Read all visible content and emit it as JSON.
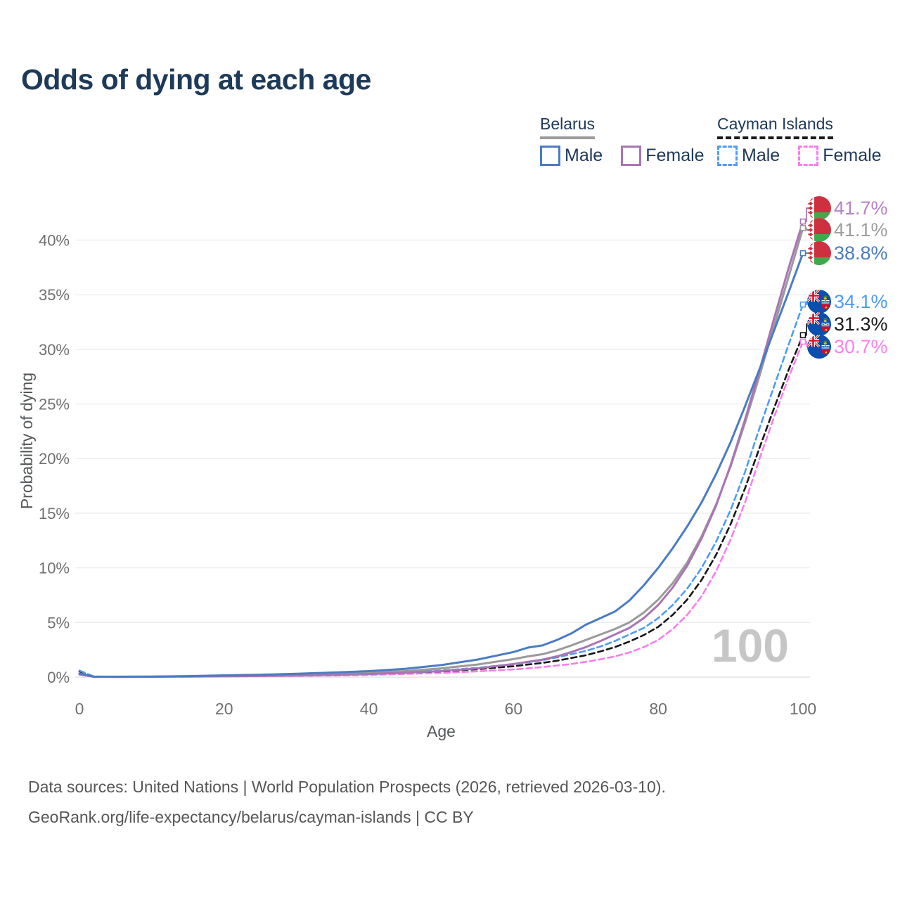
{
  "title": "Odds of dying at each age",
  "legend": {
    "groups": [
      {
        "label": "Belarus",
        "underline_style": "solid",
        "underline_color": "#9a9a9a",
        "items": [
          {
            "label": "Male",
            "color": "#4a7cc2",
            "dashed": false
          },
          {
            "label": "Female",
            "color": "#aa74b4",
            "dashed": false
          }
        ]
      },
      {
        "label": "Cayman Islands",
        "underline_style": "dashed",
        "underline_color": "#1a1a1a",
        "items": [
          {
            "label": "Male",
            "color": "#4e9bf7",
            "dashed": true
          },
          {
            "label": "Female",
            "color": "#f97cf0",
            "dashed": true
          }
        ]
      }
    ]
  },
  "chart_data": {
    "type": "line",
    "title": "Odds of dying at each age",
    "xlabel": "Age",
    "ylabel": "Probability of dying",
    "xlim": [
      0,
      100
    ],
    "ylim": [
      0,
      43
    ],
    "x_ticks": [
      0,
      20,
      40,
      60,
      80,
      100
    ],
    "y_ticks_percent": [
      0,
      5,
      10,
      15,
      20,
      25,
      30,
      35,
      40
    ],
    "grid": "horizontal",
    "legend_position": "top-right",
    "hover_age_label": "100",
    "ages": [
      0,
      2,
      5,
      10,
      15,
      20,
      25,
      30,
      35,
      40,
      45,
      50,
      55,
      60,
      62,
      64,
      66,
      68,
      70,
      72,
      74,
      76,
      78,
      80,
      82,
      84,
      86,
      88,
      90,
      92,
      94,
      96,
      98,
      100
    ],
    "series": [
      {
        "name": "Cayman Islands Female",
        "flag": "cayman",
        "color": "#f97cf0",
        "label_color": "#fb80f0",
        "dash": true,
        "end_label": "30.7%",
        "end_value": 30.7,
        "values": [
          0.5,
          0.03,
          0.02,
          0.03,
          0.04,
          0.06,
          0.08,
          0.11,
          0.15,
          0.2,
          0.28,
          0.38,
          0.53,
          0.7,
          0.8,
          0.92,
          1.06,
          1.2,
          1.4,
          1.62,
          1.9,
          2.25,
          2.75,
          3.4,
          4.4,
          5.7,
          7.4,
          9.7,
          12.6,
          16.0,
          20.0,
          23.8,
          27.4,
          30.7
        ]
      },
      {
        "name": "Cayman Islands Both sexes",
        "flag": "cayman",
        "color": "#161616",
        "label_color": "#1b1b1b",
        "dash": true,
        "end_label": "31.3%",
        "end_value": 31.3,
        "values": [
          0.55,
          0.04,
          0.03,
          0.04,
          0.06,
          0.1,
          0.13,
          0.17,
          0.22,
          0.3,
          0.4,
          0.52,
          0.72,
          1.0,
          1.15,
          1.3,
          1.5,
          1.75,
          2.0,
          2.35,
          2.75,
          3.25,
          3.85,
          4.6,
          5.7,
          7.1,
          8.9,
          11.2,
          14.0,
          17.3,
          21.0,
          24.6,
          28.1,
          31.3
        ]
      },
      {
        "name": "Cayman Islands Male",
        "flag": "cayman",
        "color": "#4e9bf7",
        "label_color": "#4e9bf7",
        "dash": true,
        "end_label": "34.1%",
        "end_value": 34.1,
        "values": [
          0.6,
          0.05,
          0.03,
          0.04,
          0.08,
          0.13,
          0.17,
          0.22,
          0.28,
          0.35,
          0.45,
          0.6,
          0.85,
          1.2,
          1.35,
          1.55,
          1.8,
          2.1,
          2.4,
          2.8,
          3.3,
          3.9,
          4.5,
          5.4,
          6.6,
          8.1,
          10.0,
          12.4,
          15.3,
          18.8,
          22.8,
          26.6,
          30.4,
          34.1
        ]
      },
      {
        "name": "Belarus Both sexes",
        "flag": "belarus",
        "color": "#9a9a9a",
        "label_color": "#9d9d9d",
        "dash": false,
        "end_label": "41.1%",
        "end_value": 41.1,
        "values": [
          0.28,
          0.04,
          0.03,
          0.04,
          0.07,
          0.12,
          0.16,
          0.22,
          0.3,
          0.4,
          0.55,
          0.8,
          1.15,
          1.65,
          1.9,
          2.1,
          2.45,
          2.9,
          3.4,
          3.9,
          4.4,
          5.0,
          5.9,
          7.1,
          8.6,
          10.5,
          12.9,
          15.8,
          19.3,
          23.3,
          27.6,
          32.1,
          36.6,
          41.1
        ]
      },
      {
        "name": "Belarus Female",
        "flag": "belarus",
        "color": "#aa74b4",
        "label_color": "#b681c9",
        "dash": false,
        "end_label": "41.7%",
        "end_value": 41.7,
        "values": [
          0.25,
          0.03,
          0.02,
          0.03,
          0.05,
          0.08,
          0.1,
          0.14,
          0.2,
          0.28,
          0.4,
          0.55,
          0.8,
          1.2,
          1.4,
          1.6,
          1.9,
          2.3,
          2.75,
          3.3,
          3.9,
          4.5,
          5.4,
          6.6,
          8.2,
          10.2,
          12.7,
          15.7,
          19.4,
          23.6,
          28.1,
          32.8,
          37.4,
          41.7
        ]
      },
      {
        "name": "Belarus Male",
        "flag": "belarus",
        "color": "#4a7cc2",
        "label_color": "#4a7cc2",
        "dash": false,
        "end_label": "38.8%",
        "end_value": 38.8,
        "values": [
          0.33,
          0.05,
          0.04,
          0.05,
          0.09,
          0.16,
          0.22,
          0.3,
          0.42,
          0.55,
          0.75,
          1.1,
          1.6,
          2.3,
          2.7,
          2.9,
          3.4,
          4.0,
          4.8,
          5.4,
          6.0,
          7.0,
          8.4,
          10.0,
          11.8,
          13.8,
          16.0,
          18.6,
          21.5,
          24.8,
          28.2,
          31.7,
          35.2,
          38.8
        ]
      }
    ]
  },
  "footer": {
    "line1": "Data sources: United Nations | World Population Prospects (2026, retrieved 2026-03-10).",
    "line2": "GeoRank.org/life-expectancy/belarus/cayman-islands | CC BY"
  }
}
